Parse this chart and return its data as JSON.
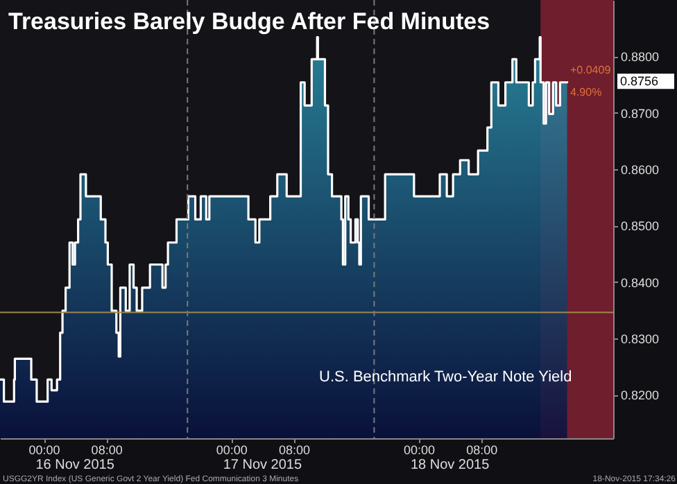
{
  "chart_data": {
    "type": "area",
    "title": "Treasuries Barely Budge After Fed Minutes",
    "x": [
      "2015-11-15T18:24",
      "2015-11-15T18:54",
      "2015-11-15T18:54",
      "2015-11-15T20:12",
      "2015-11-15T20:12",
      "2015-11-15T20:18",
      "2015-11-15T20:18",
      "2015-11-15T22:24",
      "2015-11-15T22:24",
      "2015-11-15T23:06",
      "2015-11-15T23:06",
      "2015-11-16T00:30",
      "2015-11-16T00:30",
      "2015-11-16T01:00",
      "2015-11-16T01:00",
      "2015-11-16T01:42",
      "2015-11-16T01:42",
      "2015-11-16T02:06",
      "2015-11-16T02:06",
      "2015-11-16T02:24",
      "2015-11-16T02:24",
      "2015-11-16T02:48",
      "2015-11-16T02:48",
      "2015-11-16T03:18",
      "2015-11-16T03:18",
      "2015-11-16T03:42",
      "2015-11-16T03:42",
      "2015-11-16T04:00",
      "2015-11-16T04:00",
      "2015-11-16T04:24",
      "2015-11-16T04:24",
      "2015-11-16T04:42",
      "2015-11-16T04:42",
      "2015-11-16T05:24",
      "2015-11-16T05:24",
      "2015-11-16T07:18",
      "2015-11-16T07:18",
      "2015-11-16T07:54",
      "2015-11-16T07:54",
      "2015-11-16T08:12",
      "2015-11-16T08:12",
      "2015-11-16T08:42",
      "2015-11-16T08:42",
      "2015-11-16T09:18",
      "2015-11-16T09:18",
      "2015-11-16T09:36",
      "2015-11-16T09:36",
      "2015-11-16T09:48",
      "2015-11-16T09:48",
      "2015-11-16T10:30",
      "2015-11-16T10:30",
      "2015-11-16T11:00",
      "2015-11-16T11:00",
      "2015-11-16T11:30",
      "2015-11-16T11:30",
      "2015-11-16T11:54",
      "2015-11-16T11:54",
      "2015-11-16T12:36",
      "2015-11-16T12:36",
      "2015-11-16T13:36",
      "2015-11-16T13:36",
      "2015-11-16T15:12",
      "2015-11-16T15:12",
      "2015-11-16T15:36",
      "2015-11-16T15:36",
      "2015-11-16T15:54",
      "2015-11-16T15:54",
      "2015-11-16T17:00",
      "2015-11-16T17:00",
      "2015-11-16T18:30",
      "2015-11-16T18:30",
      "2015-11-16T19:24",
      "2015-11-16T19:24",
      "2015-11-16T20:06",
      "2015-11-16T20:06",
      "2015-11-16T20:48",
      "2015-11-16T20:48",
      "2015-11-16T21:12",
      "2015-11-16T21:12",
      "2015-11-17T02:12",
      "2015-11-17T02:12",
      "2015-11-17T03:06",
      "2015-11-17T03:06",
      "2015-11-17T03:36",
      "2015-11-17T03:36",
      "2015-11-17T05:00",
      "2015-11-17T05:00",
      "2015-11-17T05:54",
      "2015-11-17T05:54",
      "2015-11-17T07:06",
      "2015-11-17T07:06",
      "2015-11-17T08:54",
      "2015-11-17T08:54",
      "2015-11-17T09:24",
      "2015-11-17T09:24",
      "2015-11-17T10:18",
      "2015-11-17T10:18",
      "2015-11-17T11:00",
      "2015-11-17T11:00",
      "2015-11-17T11:06",
      "2015-11-17T11:06",
      "2015-11-17T12:00",
      "2015-11-17T12:00",
      "2015-11-17T12:24",
      "2015-11-17T12:24",
      "2015-11-17T12:54",
      "2015-11-17T12:54",
      "2015-11-17T13:12",
      "2015-11-17T13:12",
      "2015-11-17T14:06",
      "2015-11-17T14:06",
      "2015-11-17T14:18",
      "2015-11-17T14:18",
      "2015-11-17T14:36",
      "2015-11-17T14:36",
      "2015-11-17T15:00",
      "2015-11-17T15:00",
      "2015-11-17T15:18",
      "2015-11-17T15:18",
      "2015-11-17T15:54",
      "2015-11-17T15:54",
      "2015-11-17T16:12",
      "2015-11-17T16:12",
      "2015-11-17T16:24",
      "2015-11-17T16:24",
      "2015-11-17T16:36",
      "2015-11-17T16:36",
      "2015-11-17T17:36",
      "2015-11-17T17:36",
      "2015-11-17T19:42",
      "2015-11-17T19:42",
      "2015-11-17T23:24",
      "2015-11-17T23:24",
      "2015-11-18T02:42",
      "2015-11-18T02:42",
      "2015-11-18T03:36",
      "2015-11-18T03:36",
      "2015-11-18T04:24",
      "2015-11-18T04:24",
      "2015-11-18T05:18",
      "2015-11-18T05:18",
      "2015-11-18T06:24",
      "2015-11-18T06:24",
      "2015-11-18T07:36",
      "2015-11-18T07:36",
      "2015-11-18T08:48",
      "2015-11-18T08:48",
      "2015-11-18T09:18",
      "2015-11-18T09:18",
      "2015-11-18T10:12",
      "2015-11-18T10:12",
      "2015-11-18T11:06",
      "2015-11-18T11:06",
      "2015-11-18T12:00",
      "2015-11-18T12:00",
      "2015-11-18T12:30",
      "2015-11-18T12:30",
      "2015-11-18T13:42",
      "2015-11-18T13:42",
      "2015-11-18T14:06",
      "2015-11-18T14:06",
      "2015-11-18T14:36",
      "2015-11-18T14:36",
      "2015-11-18T14:54",
      "2015-11-18T14:54",
      "2015-11-18T15:30",
      "2015-11-18T15:30",
      "2015-11-18T15:36",
      "2015-11-18T15:36",
      "2015-11-18T16:00",
      "2015-11-18T16:00",
      "2015-11-18T16:18",
      "2015-11-18T16:18",
      "2015-11-18T16:42",
      "2015-11-18T16:42",
      "2015-11-18T17:12",
      "2015-11-18T17:12",
      "2015-11-18T17:36",
      "2015-11-18T17:36",
      "2015-11-18T18:06",
      "2015-11-18T18:06",
      "2015-11-18T19:00",
      "2015-11-18T19:00"
    ],
    "series": [
      {
        "color": "#ffffff",
        "values": [
          0.8227,
          0.8227,
          0.8188,
          0.8188,
          0.8227,
          0.8227,
          0.8264,
          0.8264,
          0.8227,
          0.8227,
          0.8188,
          0.8188,
          0.8227,
          0.8227,
          0.8208,
          0.8208,
          0.8227,
          0.8227,
          0.831,
          0.831,
          0.8349,
          0.8349,
          0.839,
          0.839,
          0.847,
          0.847,
          0.8431,
          0.8431,
          0.847,
          0.847,
          0.8511,
          0.8511,
          0.8591,
          0.8591,
          0.8552,
          0.8552,
          0.8511,
          0.8511,
          0.847,
          0.847,
          0.8431,
          0.8431,
          0.8349,
          0.8349,
          0.831,
          0.831,
          0.8268,
          0.8268,
          0.839,
          0.839,
          0.8349,
          0.8349,
          0.8431,
          0.8431,
          0.839,
          0.839,
          0.8349,
          0.8349,
          0.839,
          0.839,
          0.8431,
          0.8431,
          0.839,
          0.839,
          0.8431,
          0.8431,
          0.847,
          0.847,
          0.8511,
          0.8511,
          0.8552,
          0.8552,
          0.8511,
          0.8511,
          0.8552,
          0.8552,
          0.8511,
          0.8511,
          0.8552,
          0.8552,
          0.8511,
          0.8511,
          0.847,
          0.847,
          0.8511,
          0.8511,
          0.8552,
          0.8552,
          0.8591,
          0.8591,
          0.8552,
          0.8552,
          0.8754,
          0.8754,
          0.8713,
          0.8713,
          0.8795,
          0.8795,
          0.8834,
          0.8834,
          0.8795,
          0.8795,
          0.8713,
          0.8713,
          0.8591,
          0.8591,
          0.8552,
          0.8552,
          0.8552,
          0.8552,
          0.8511,
          0.8511,
          0.8431,
          0.8431,
          0.8552,
          0.8552,
          0.8511,
          0.8511,
          0.847,
          0.847,
          0.8511,
          0.8511,
          0.847,
          0.847,
          0.8431,
          0.8431,
          0.8552,
          0.8552,
          0.8511,
          0.8511,
          0.8591,
          0.8591,
          0.8552,
          0.8552,
          0.8591,
          0.8591,
          0.8552,
          0.8552,
          0.8591,
          0.8591,
          0.8616,
          0.8616,
          0.8591,
          0.8591,
          0.8633,
          0.8633,
          0.8674,
          0.8674,
          0.8754,
          0.8754,
          0.8713,
          0.8713,
          0.8754,
          0.8754,
          0.8795,
          0.8795,
          0.8754,
          0.8754,
          0.8754,
          0.8754,
          0.8713,
          0.8713,
          0.8754,
          0.8754,
          0.8795,
          0.8795,
          0.8834,
          0.8834,
          0.8754,
          0.8754,
          0.8681,
          0.8681,
          0.8754,
          0.8754,
          0.8698,
          0.8698,
          0.8754,
          0.8754,
          0.8713,
          0.8713,
          0.8754,
          0.8754,
          0.8756
        ]
      }
    ],
    "xlim": [
      "2015-11-15T18:24",
      "2015-11-19T00:54"
    ],
    "ylim": [
      0.8123,
      0.89
    ],
    "xticks": [
      {
        "value": "2015-11-16T00:00",
        "label": "00:00"
      },
      {
        "value": "2015-11-16T08:00",
        "label": "08:00"
      },
      {
        "value": "2015-11-17T00:00",
        "label": "00:00"
      },
      {
        "value": "2015-11-17T08:00",
        "label": "08:00"
      },
      {
        "value": "2015-11-18T00:00",
        "label": "00:00"
      },
      {
        "value": "2015-11-18T08:00",
        "label": "08:00"
      }
    ],
    "yticks": [
      {
        "value": 0.82,
        "label": "0.8200"
      },
      {
        "value": 0.83,
        "label": "0.8300"
      },
      {
        "value": 0.84,
        "label": "0.8400"
      },
      {
        "value": 0.85,
        "label": "0.8500"
      },
      {
        "value": 0.86,
        "label": "0.8600"
      },
      {
        "value": 0.87,
        "label": "0.8700"
      },
      {
        "value": 0.88,
        "label": "0.8800"
      }
    ],
    "ref_lines": [
      {
        "axis": "y",
        "value": 0.8346,
        "color": "#a08a4a",
        "line_style": "solid"
      },
      {
        "axis": "x",
        "value": "2015-11-16T18:24",
        "color": "#7a7a7a",
        "line_style": "dashed"
      },
      {
        "axis": "x",
        "value": "2015-11-17T18:18",
        "color": "#7a7a7a",
        "line_style": "dashed"
      }
    ],
    "bands": [
      {
        "axis": "x",
        "from": "2015-11-18T15:36",
        "to": "2015-11-19T00:54",
        "color": "#6e1e2c"
      }
    ],
    "annotations": [
      "16 Nov 2015",
      "17 Nov 2015",
      "18 Nov 2015",
      "U.S. Benchmark Two-Year Note Yield",
      "+0.0409",
      "4.90%",
      "USGG2YR Index (US Generic Govt 2 Year Yield) Fed Communication 3 Minutes",
      "18-Nov-2015 17:34:26",
      "0.8756"
    ],
    "grid": false
  }
}
